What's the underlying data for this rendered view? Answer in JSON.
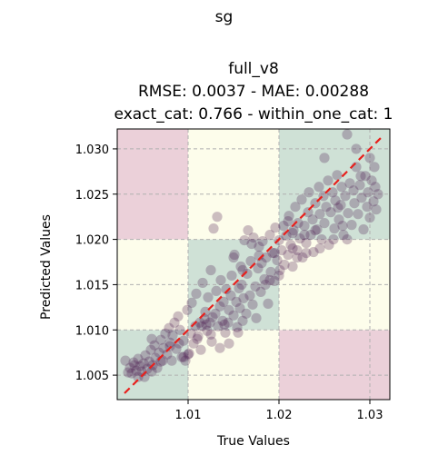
{
  "chart_data": {
    "type": "scatter",
    "suptitle": "sg",
    "title_lines": [
      "full_v8",
      "RMSE: 0.0037 - MAE: 0.00288",
      "exact_cat: 0.766 - within_one_cat: 1"
    ],
    "xlabel": "True Values",
    "ylabel": "Predicted Values",
    "xlim": [
      1.0022,
      1.0322
    ],
    "ylim": [
      1.0023,
      1.0322
    ],
    "x_ticks": [
      1.01,
      1.02,
      1.03
    ],
    "x_tick_labels": [
      "1.01",
      "1.02",
      "1.03"
    ],
    "y_ticks": [
      1.005,
      1.01,
      1.015,
      1.02,
      1.025,
      1.03
    ],
    "y_tick_labels": [
      "1.005",
      "1.010",
      "1.015",
      "1.020",
      "1.025",
      "1.030"
    ],
    "grid": true,
    "category_bounds": [
      1.0,
      1.01,
      1.02,
      1.04
    ],
    "region_colors": {
      "match": "#cfe1d6",
      "adjacent": "#fdfdeb",
      "far": "#ebd0d9"
    },
    "point_color": "#4a1a4f",
    "identity_line_color": "#e8201c",
    "identity_line": [
      [
        1.003,
        1.003
      ],
      [
        1.0312,
        1.0312
      ]
    ],
    "points": [
      [
        1.0031,
        1.0066
      ],
      [
        1.0034,
        1.0053
      ],
      [
        1.0036,
        1.0058
      ],
      [
        1.0038,
        1.0052
      ],
      [
        1.0041,
        1.0061
      ],
      [
        1.0043,
        1.0055
      ],
      [
        1.0045,
        1.0068
      ],
      [
        1.0047,
        1.006
      ],
      [
        1.0049,
        1.0054
      ],
      [
        1.0051,
        1.0063
      ],
      [
        1.0053,
        1.0072
      ],
      [
        1.0055,
        1.0057
      ],
      [
        1.0057,
        1.0065
      ],
      [
        1.0059,
        1.0078
      ],
      [
        1.0061,
        1.0061
      ],
      [
        1.0063,
        1.0083
      ],
      [
        1.0064,
        1.0069
      ],
      [
        1.0066,
        1.0058
      ],
      [
        1.0068,
        1.0075
      ],
      [
        1.007,
        1.0089
      ],
      [
        1.0072,
        1.0066
      ],
      [
        1.0073,
        1.008
      ],
      [
        1.0075,
        1.0096
      ],
      [
        1.0077,
        1.0073
      ],
      [
        1.0079,
        1.0102
      ],
      [
        1.008,
        1.0086
      ],
      [
        1.0082,
        1.0066
      ],
      [
        1.0083,
        1.0094
      ],
      [
        1.0085,
        1.0108
      ],
      [
        1.0087,
        1.0079
      ],
      [
        1.0089,
        1.0115
      ],
      [
        1.0091,
        1.01
      ],
      [
        1.0093,
        1.007
      ],
      [
        1.0095,
        1.0088
      ],
      [
        1.0097,
        1.0066
      ],
      [
        1.0099,
        1.0122
      ],
      [
        1.0101,
        1.0074
      ],
      [
        1.0103,
        1.0096
      ],
      [
        1.0104,
        1.013
      ],
      [
        1.0106,
        1.0085
      ],
      [
        1.0108,
        1.0104
      ],
      [
        1.0109,
        1.014
      ],
      [
        1.0111,
        1.0093
      ],
      [
        1.0113,
        1.0108
      ],
      [
        1.0114,
        1.0078
      ],
      [
        1.0116,
        1.0152
      ],
      [
        1.0118,
        1.0112
      ],
      [
        1.0119,
        1.012
      ],
      [
        1.0121,
        1.0099
      ],
      [
        1.0122,
        1.0136
      ],
      [
        1.0124,
        1.0108
      ],
      [
        1.0125,
        1.0166
      ],
      [
        1.0126,
        1.0087
      ],
      [
        1.0127,
        1.0114
      ],
      [
        1.0128,
        1.0212
      ],
      [
        1.013,
        1.0118
      ],
      [
        1.0131,
        1.0143
      ],
      [
        1.0132,
        1.0225
      ],
      [
        1.0133,
        1.0104
      ],
      [
        1.0135,
        1.0126
      ],
      [
        1.0136,
        1.0155
      ],
      [
        1.0138,
        1.011
      ],
      [
        1.0139,
        1.0131
      ],
      [
        1.0141,
        1.0097
      ],
      [
        1.0142,
        1.0145
      ],
      [
        1.0144,
        1.0108
      ],
      [
        1.0145,
        1.0122
      ],
      [
        1.0147,
        1.0138
      ],
      [
        1.0148,
        1.016
      ],
      [
        1.015,
        1.0116
      ],
      [
        1.0151,
        1.0183
      ],
      [
        1.0153,
        1.0131
      ],
      [
        1.0154,
        1.0103
      ],
      [
        1.0156,
        1.0146
      ],
      [
        1.0157,
        1.0124
      ],
      [
        1.0158,
        1.017
      ],
      [
        1.0159,
        1.015
      ],
      [
        1.0161,
        1.0135
      ],
      [
        1.0162,
        1.0199
      ],
      [
        1.0164,
        1.0118
      ],
      [
        1.0165,
        1.0162
      ],
      [
        1.0166,
        1.021
      ],
      [
        1.0168,
        1.0138
      ],
      [
        1.0169,
        1.0176
      ],
      [
        1.0171,
        1.0128
      ],
      [
        1.0172,
        1.0202
      ],
      [
        1.0174,
        1.0148
      ],
      [
        1.0175,
        1.0113
      ],
      [
        1.0177,
        1.0168
      ],
      [
        1.0178,
        1.0192
      ],
      [
        1.018,
        1.0142
      ],
      [
        1.0181,
        1.0174
      ],
      [
        1.0182,
        1.0198
      ],
      [
        1.0184,
        1.0156
      ],
      [
        1.0186,
        1.018
      ],
      [
        1.0188,
        1.0129
      ],
      [
        1.019,
        1.0205
      ],
      [
        1.0191,
        1.0164
      ],
      [
        1.0193,
        1.0185
      ],
      [
        1.0195,
        1.0154
      ],
      [
        1.0196,
        1.0213
      ],
      [
        1.0198,
        1.0177
      ],
      [
        1.02,
        1.0199
      ],
      [
        1.0201,
        1.0166
      ],
      [
        1.0203,
        1.0188
      ],
      [
        1.0205,
        1.0215
      ],
      [
        1.0206,
        1.0172
      ],
      [
        1.0208,
        1.0204
      ],
      [
        1.021,
        1.0183
      ],
      [
        1.0211,
        1.0226
      ],
      [
        1.0213,
        1.0194
      ],
      [
        1.0215,
        1.017
      ],
      [
        1.0216,
        1.021
      ],
      [
        1.0218,
        1.0236
      ],
      [
        1.022,
        1.0188
      ],
      [
        1.0221,
        1.0218
      ],
      [
        1.0223,
        1.0201
      ],
      [
        1.0225,
        1.0244
      ],
      [
        1.0226,
        1.018
      ],
      [
        1.0228,
        1.0215
      ],
      [
        1.023,
        1.0196
      ],
      [
        1.0232,
        1.023
      ],
      [
        1.0233,
        1.0252
      ],
      [
        1.0235,
        1.0205
      ],
      [
        1.0237,
        1.0222
      ],
      [
        1.0238,
        1.0186
      ],
      [
        1.024,
        1.024
      ],
      [
        1.0242,
        1.0211
      ],
      [
        1.0244,
        1.0258
      ],
      [
        1.0245,
        1.0228
      ],
      [
        1.0247,
        1.02
      ],
      [
        1.0249,
        1.0248
      ],
      [
        1.025,
        1.0218
      ],
      [
        1.0252,
        1.0236
      ],
      [
        1.0254,
        1.0265
      ],
      [
        1.0255,
        1.0194
      ],
      [
        1.0257,
        1.023
      ],
      [
        1.0259,
        1.0252
      ],
      [
        1.0261,
        1.0212
      ],
      [
        1.0262,
        1.0243
      ],
      [
        1.0264,
        1.0271
      ],
      [
        1.0266,
        1.0222
      ],
      [
        1.0268,
        1.0238
      ],
      [
        1.0269,
        1.0258
      ],
      [
        1.0271,
        1.0205
      ],
      [
        1.0273,
        1.0248
      ],
      [
        1.0275,
        1.0316
      ],
      [
        1.0276,
        1.0229
      ],
      [
        1.0278,
        1.0262
      ],
      [
        1.028,
        1.0216
      ],
      [
        1.0282,
        1.0254
      ],
      [
        1.0283,
        1.024
      ],
      [
        1.0285,
        1.03
      ],
      [
        1.0287,
        1.0228
      ],
      [
        1.0289,
        1.026
      ],
      [
        1.0291,
        1.0246
      ],
      [
        1.0293,
        1.0211
      ],
      [
        1.0295,
        1.027
      ],
      [
        1.0297,
        1.0236
      ],
      [
        1.0298,
        1.0252
      ],
      [
        1.03,
        1.0224
      ],
      [
        1.0302,
        1.0265
      ],
      [
        1.0304,
        1.0242
      ],
      [
        1.0306,
        1.0258
      ],
      [
        1.0307,
        1.0233
      ],
      [
        1.0309,
        1.025
      ],
      [
        1.006,
        1.009
      ],
      [
        1.009,
        1.0085
      ],
      [
        1.0115,
        1.0104
      ],
      [
        1.012,
        1.0106
      ],
      [
        1.014,
        1.0106
      ],
      [
        1.015,
        1.018
      ],
      [
        1.016,
        1.011
      ],
      [
        1.017,
        1.0195
      ],
      [
        1.0185,
        1.015
      ],
      [
        1.019,
        1.0155
      ],
      [
        1.02,
        1.016
      ],
      [
        1.021,
        1.022
      ],
      [
        1.0215,
        1.019
      ],
      [
        1.022,
        1.018
      ],
      [
        1.023,
        1.0185
      ],
      [
        1.0245,
        1.019
      ],
      [
        1.026,
        1.02
      ],
      [
        1.0265,
        1.0235
      ],
      [
        1.027,
        1.0215
      ],
      [
        1.0275,
        1.02
      ],
      [
        1.024,
        1.021
      ],
      [
        1.0228,
        1.0205
      ],
      [
        1.0215,
        1.0207
      ],
      [
        1.0195,
        1.0185
      ],
      [
        1.0178,
        1.0182
      ],
      [
        1.016,
        1.0166
      ],
      [
        1.0155,
        1.0097
      ],
      [
        1.0145,
        1.0085
      ],
      [
        1.0135,
        1.008
      ],
      [
        1.0125,
        1.0095
      ],
      [
        1.0095,
        1.007
      ],
      [
        1.008,
        1.0082
      ],
      [
        1.007,
        1.0065
      ],
      [
        1.006,
        1.0054
      ],
      [
        1.0045,
        1.0048
      ],
      [
        1.004,
        1.0064
      ],
      [
        1.0052,
        1.0048
      ],
      [
        1.01,
        1.0073
      ],
      [
        1.011,
        1.009
      ],
      [
        1.025,
        1.029
      ],
      [
        1.0285,
        1.028
      ],
      [
        1.029,
        1.027
      ],
      [
        1.03,
        1.029
      ],
      [
        1.0305,
        1.028
      ]
    ]
  }
}
